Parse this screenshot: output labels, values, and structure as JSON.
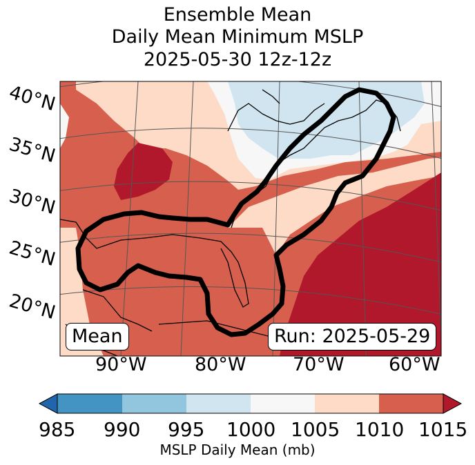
{
  "title": {
    "line1": "Ensemble Mean",
    "line2": "Daily Mean Minimum MSLP",
    "line3": "2025-05-30 12z-12z"
  },
  "latitude_labels": [
    "40°N",
    "35°N",
    "30°N",
    "25°N",
    "20°N"
  ],
  "longitude_labels": [
    "90°W",
    "80°W",
    "70°W",
    "60°W"
  ],
  "panel_labels": {
    "member": "Mean",
    "run": "Run: 2025-05-29"
  },
  "colorbar": {
    "ticks": [
      "985",
      "990",
      "995",
      "1000",
      "1005",
      "1010",
      "1015"
    ],
    "label": "MSLP Daily Mean (mb)",
    "colors": [
      "#2166ac",
      "#4393c3",
      "#92c5de",
      "#d1e5f0",
      "#f7f7f7",
      "#fddbc7",
      "#d6604d",
      "#b2182b"
    ]
  }
}
